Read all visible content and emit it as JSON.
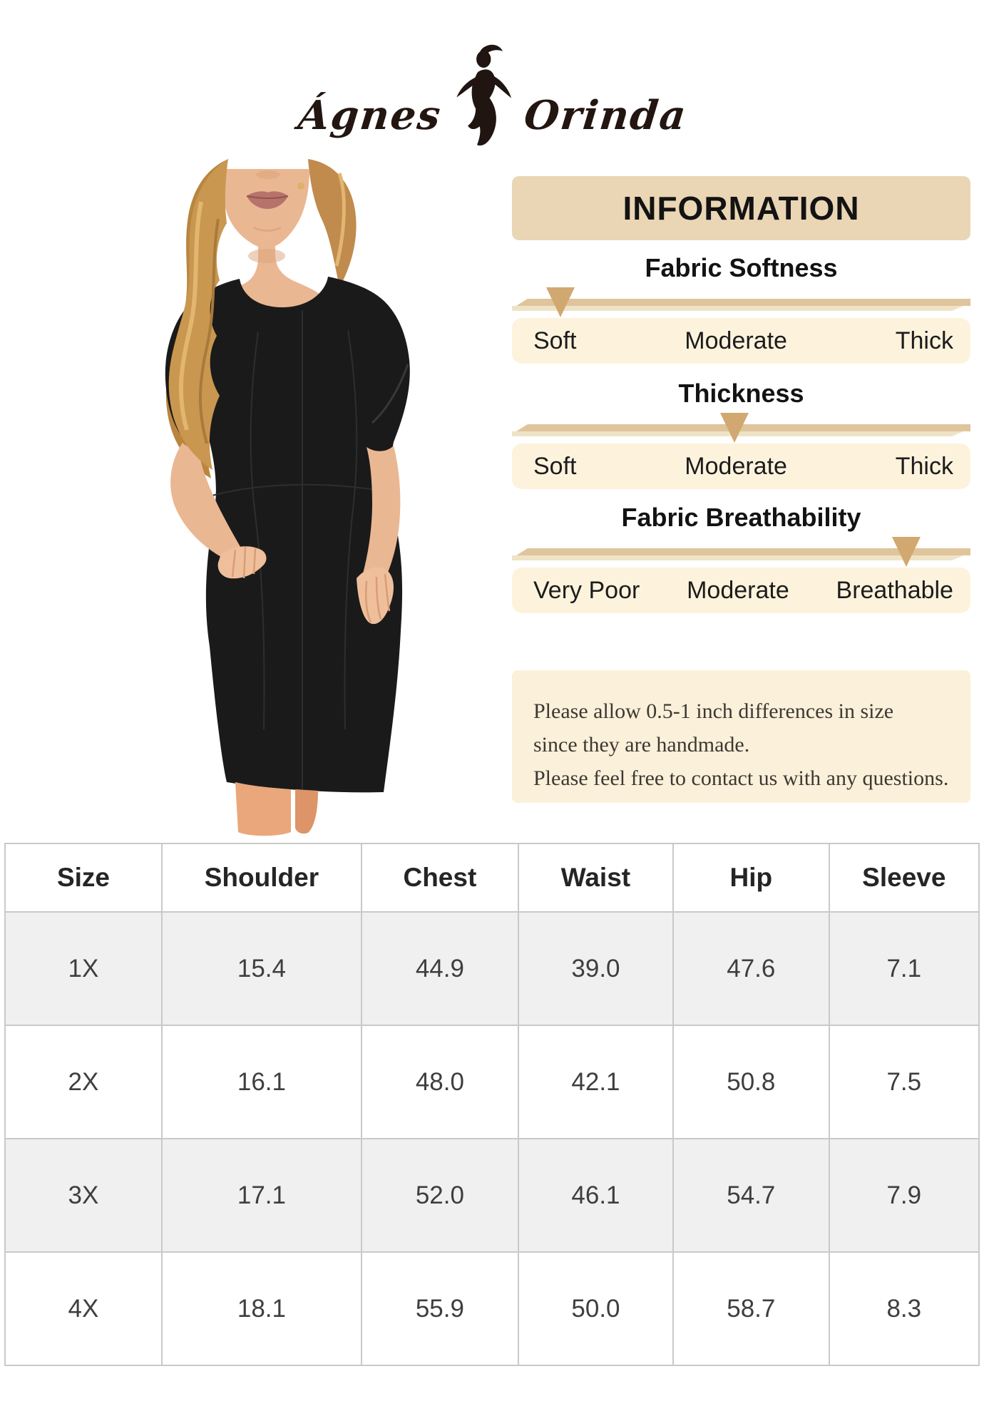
{
  "brand": {
    "name_left": "Ágnes",
    "name_right": "Orinda"
  },
  "photo": {
    "description": "plus-size model in black round-neck short-sleeve knee-length sheath dress, hand on hip"
  },
  "info_panel": {
    "header": "INFORMATION",
    "scales": [
      {
        "title": "Fabric Softness",
        "labels": [
          "Soft",
          "Moderate",
          "Thick"
        ],
        "value": "Soft",
        "marker_percent": 10.5
      },
      {
        "title": "Thickness",
        "labels": [
          "Soft",
          "Moderate",
          "Thick"
        ],
        "value": "Moderate",
        "marker_percent": 48.5
      },
      {
        "title": "Fabric Breathability",
        "labels": [
          "Very Poor",
          "Moderate",
          "Breathable"
        ],
        "value": "Breathable",
        "marker_percent": 86
      }
    ],
    "note_lines": [
      "Please allow 0.5-1 inch differences in size",
      "since they are handmade.",
      "Please feel free to contact us with any questions."
    ]
  },
  "size_table": {
    "headers": [
      "Size",
      "Shoulder",
      "Chest",
      "Waist",
      "Hip",
      "Sleeve"
    ],
    "rows": [
      [
        "1X",
        "15.4",
        "44.9",
        "39.0",
        "47.6",
        "7.1"
      ],
      [
        "2X",
        "16.1",
        "48.0",
        "42.1",
        "50.8",
        "7.5"
      ],
      [
        "3X",
        "17.1",
        "52.0",
        "46.1",
        "54.7",
        "7.9"
      ],
      [
        "4X",
        "18.1",
        "55.9",
        "50.0",
        "58.7",
        "8.3"
      ]
    ]
  },
  "colors": {
    "panel_beige": "#ead6b5",
    "panel_cream": "#fdf3dd",
    "note_cream": "#fbf0da",
    "marker_tan": "#d2a871",
    "ribbon_tan": "#dfc49c",
    "table_border": "#c9c9c9",
    "row_gray": "#f0f0f0",
    "dress_black": "#1a1a1a"
  }
}
